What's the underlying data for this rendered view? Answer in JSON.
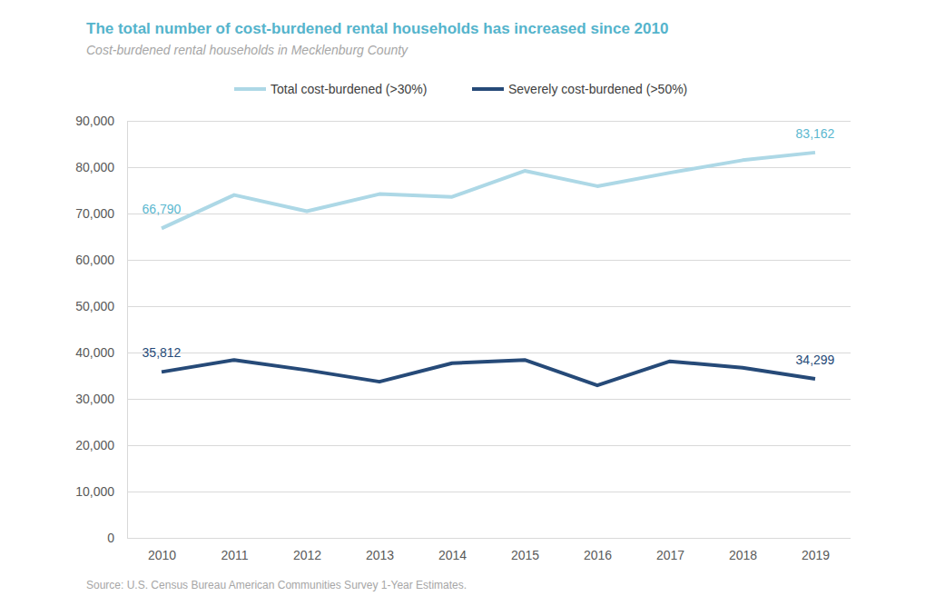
{
  "chart_data": {
    "type": "line",
    "title": "The total number of cost-burdened rental households has increased since 2010",
    "subtitle": "Cost-burdened rental households in Mecklenburg County",
    "source": "Source: U.S. Census Bureau American Communities Survey 1-Year Estimates.",
    "categories": [
      "2010",
      "2011",
      "2012",
      "2013",
      "2014",
      "2015",
      "2016",
      "2017",
      "2018",
      "2019"
    ],
    "series": [
      {
        "name": "Total cost-burdened (>30%)",
        "color": "#add8e6",
        "values": [
          66790,
          74000,
          70500,
          74200,
          73600,
          79200,
          75900,
          78800,
          81500,
          83162
        ],
        "value_labels": [
          "66,790",
          null,
          null,
          null,
          null,
          null,
          null,
          null,
          null,
          "83,162"
        ]
      },
      {
        "name": "Severely cost-burdened (>50%)",
        "color": "#264a78",
        "values": [
          35812,
          38400,
          36200,
          33700,
          37700,
          38400,
          32900,
          38100,
          36700,
          34299
        ],
        "value_labels": [
          "35,812",
          null,
          null,
          null,
          null,
          null,
          null,
          null,
          null,
          "34,299"
        ]
      }
    ],
    "ylim": [
      0,
      90000
    ],
    "yticks": [
      0,
      {
        "value": 10000,
        "label": "10,000"
      },
      {
        "value": 20000,
        "label": "20,000"
      },
      {
        "value": 30000,
        "label": "30,000"
      },
      {
        "value": 40000,
        "label": "40,000"
      },
      {
        "value": 50000,
        "label": "50,000"
      },
      {
        "value": 60000,
        "label": "60,000"
      },
      {
        "value": 70000,
        "label": "70,000"
      },
      {
        "value": 80000,
        "label": "80,000"
      },
      {
        "value": 90000,
        "label": "90,000"
      }
    ],
    "grid": true,
    "legend": "top",
    "data_labels": true
  }
}
